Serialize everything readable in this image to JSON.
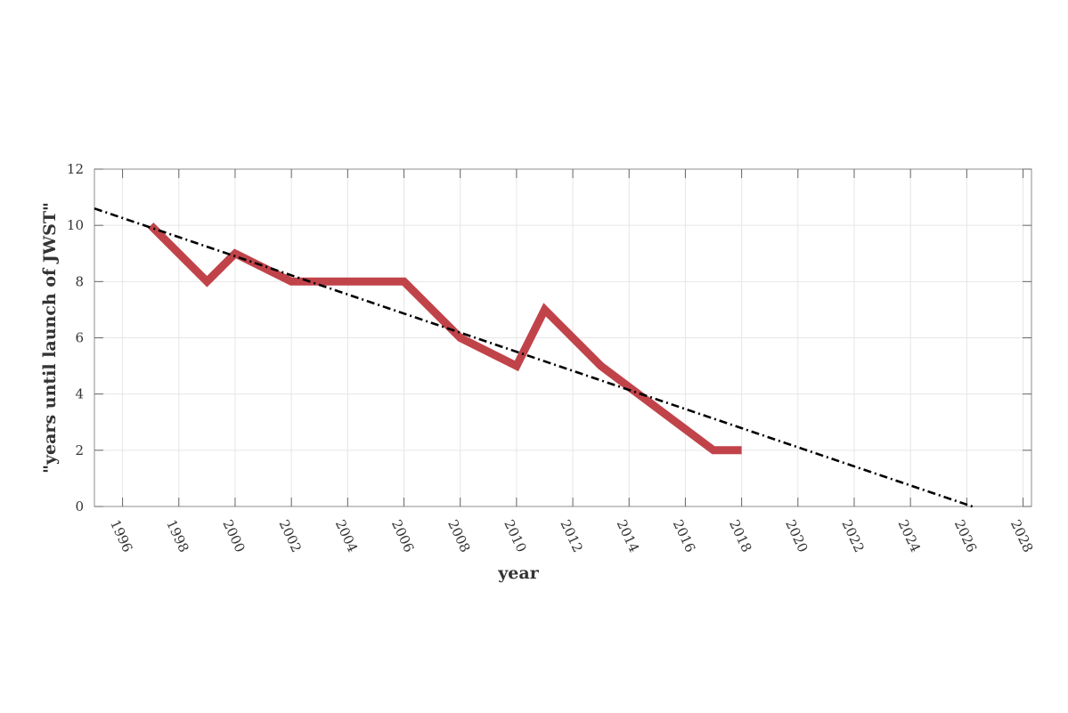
{
  "chart_data": {
    "type": "line",
    "title": "",
    "xlabel": "year",
    "ylabel": "\"years until launch of JWST\"",
    "xlim": [
      1995,
      2028.3
    ],
    "ylim": [
      0,
      12
    ],
    "xticks": [
      1996,
      1998,
      2000,
      2002,
      2004,
      2006,
      2008,
      2010,
      2012,
      2014,
      2016,
      2018,
      2020,
      2022,
      2024,
      2026,
      2028
    ],
    "yticks": [
      0,
      2,
      4,
      6,
      8,
      10,
      12
    ],
    "grid": true,
    "series": [
      {
        "style": "solid",
        "color": "#c1434a",
        "points": [
          {
            "x": 1997,
            "y": 10
          },
          {
            "x": 1999,
            "y": 8
          },
          {
            "x": 2000,
            "y": 9
          },
          {
            "x": 2002,
            "y": 8
          },
          {
            "x": 2003,
            "y": 8
          },
          {
            "x": 2006,
            "y": 8
          },
          {
            "x": 2008,
            "y": 6
          },
          {
            "x": 2010,
            "y": 5
          },
          {
            "x": 2011,
            "y": 7
          },
          {
            "x": 2013,
            "y": 5
          },
          {
            "x": 2017,
            "y": 2
          },
          {
            "x": 2018,
            "y": 2
          }
        ]
      },
      {
        "style": "dash-dot",
        "color": "#000000",
        "points": [
          {
            "x": 1995,
            "y": 10.6
          },
          {
            "x": 2026.2,
            "y": 0
          }
        ]
      }
    ]
  }
}
